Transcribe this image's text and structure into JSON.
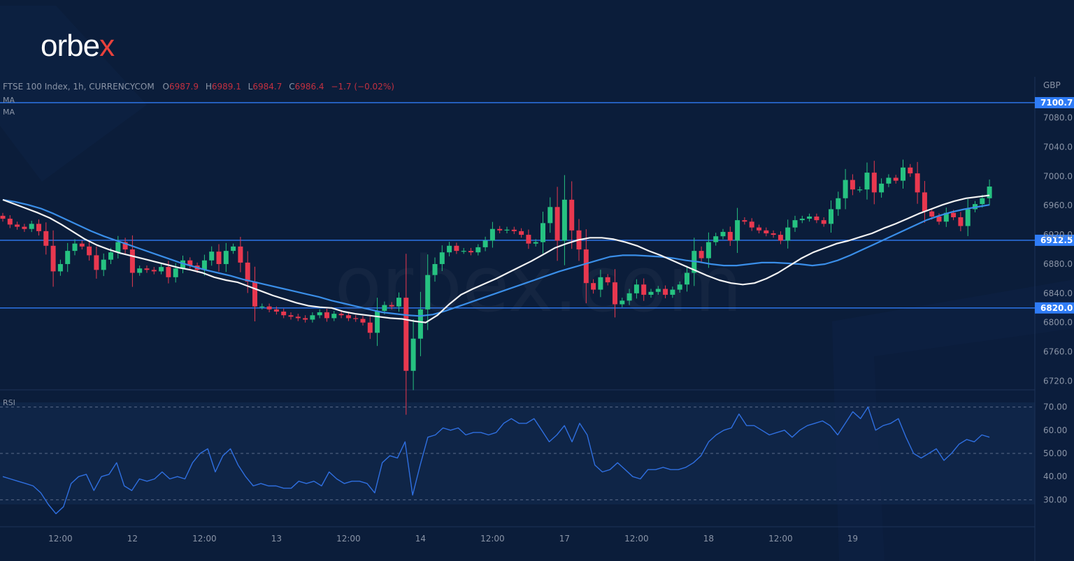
{
  "brand": {
    "name": "orbe",
    "accent": "x",
    "watermark": "orbex.com",
    "accent_color": "#e8413c"
  },
  "legend": {
    "symbol": "FTSE 100 Index, 1h, CURRENCYCOM",
    "o_label": "O",
    "o_value": "6987.9",
    "h_label": "H",
    "h_value": "6989.1",
    "l_label": "L",
    "l_value": "6984.7",
    "c_label": "C",
    "c_value": "6986.4",
    "change": "−1.7 (−0.02%)",
    "ma1": "MA",
    "ma2": "MA"
  },
  "colors": {
    "bg": "#0b1d3a",
    "up": "#26c281",
    "down": "#e8384f",
    "level": "#2f7cf6",
    "ma_fast": "#f2f2f2",
    "ma_slow": "#3a8ee8",
    "rsi": "#2f6fe0",
    "axis_text": "#8a94a6"
  },
  "chart_data": {
    "type": "candlestick",
    "currency": "GBP",
    "y_ticks": [
      7080,
      7040,
      7000,
      6960,
      6920,
      6880,
      6840,
      6800,
      6760,
      6720
    ],
    "ylim": [
      6708,
      7136
    ],
    "x_labels": [
      {
        "label": "12:00",
        "i": 8
      },
      {
        "label": "12",
        "i": 18
      },
      {
        "label": "12:00",
        "i": 28
      },
      {
        "label": "13",
        "i": 38
      },
      {
        "label": "12:00",
        "i": 48
      },
      {
        "label": "14",
        "i": 58
      },
      {
        "label": "12:00",
        "i": 68
      },
      {
        "label": "17",
        "i": 78
      },
      {
        "label": "12:00",
        "i": 88
      },
      {
        "label": "18",
        "i": 98
      },
      {
        "label": "12:00",
        "i": 108
      },
      {
        "label": "19",
        "i": 118
      }
    ],
    "levels": [
      {
        "value": 7100.7,
        "label": "7100.7"
      },
      {
        "value": 6912.5,
        "label": "6912.5"
      },
      {
        "value": 6820.0,
        "label": "6820.0"
      }
    ],
    "closes": [
      6942,
      6934,
      6931,
      6928,
      6935,
      6925,
      6905,
      6870,
      6880,
      6898,
      6908,
      6904,
      6892,
      6872,
      6886,
      6896,
      6910,
      6900,
      6868,
      6874,
      6872,
      6870,
      6876,
      6862,
      6874,
      6885,
      6878,
      6872,
      6885,
      6897,
      6880,
      6898,
      6904,
      6882,
      6856,
      6822,
      6822,
      6818,
      6815,
      6810,
      6808,
      6806,
      6804,
      6810,
      6814,
      6806,
      6812,
      6810,
      6806,
      6805,
      6800,
      6786,
      6816,
      6824,
      6822,
      6834,
      6734,
      6778,
      6818,
      6865,
      6880,
      6896,
      6905,
      6898,
      6898,
      6896,
      6903,
      6912,
      6928,
      6926,
      6927,
      6925,
      6920,
      6908,
      6910,
      6936,
      6958,
      6912,
      6968,
      6926,
      6900,
      6854,
      6845,
      6862,
      6855,
      6825,
      6830,
      6840,
      6852,
      6838,
      6842,
      6846,
      6838,
      6845,
      6852,
      6868,
      6898,
      6888,
      6910,
      6918,
      6924,
      6912,
      6940,
      6938,
      6930,
      6926,
      6922,
      6920,
      6912,
      6930,
      6940,
      6942,
      6945,
      6940,
      6935,
      6955,
      6970,
      6995,
      6982,
      6982,
      7005,
      6978,
      6990,
      6998,
      6994,
      7012,
      7004,
      6978,
      6952,
      6945,
      6938,
      6950,
      6944,
      6932,
      6955,
      6962,
      6970,
      6986
    ],
    "ma_fast": [
      6968,
      6962,
      6956,
      6950,
      6943,
      6934,
      6924,
      6914,
      6906,
      6900,
      6895,
      6891,
      6887,
      6883,
      6879,
      6875,
      6872,
      6868,
      6862,
      6858,
      6855,
      6849,
      6843,
      6837,
      6832,
      6827,
      6823,
      6821,
      6820,
      6815,
      6812,
      6810,
      6808,
      6806,
      6805,
      6802,
      6800,
      6810,
      6825,
      6838,
      6846,
      6853,
      6860,
      6868,
      6876,
      6884,
      6893,
      6902,
      6908,
      6913,
      6916,
      6916,
      6914,
      6910,
      6905,
      6898,
      6892,
      6885,
      6878,
      6871,
      6864,
      6858,
      6854,
      6852,
      6854,
      6860,
      6868,
      6878,
      6888,
      6896,
      6902,
      6908,
      6912,
      6917,
      6922,
      6929,
      6935,
      6942,
      6949,
      6955,
      6961,
      6966,
      6970,
      6972,
      6974
    ],
    "ma_slow": [
      6968,
      6965,
      6961,
      6956,
      6949,
      6941,
      6933,
      6925,
      6918,
      6912,
      6906,
      6900,
      6894,
      6888,
      6882,
      6877,
      6872,
      6868,
      6864,
      6859,
      6855,
      6851,
      6847,
      6843,
      6839,
      6835,
      6830,
      6826,
      6822,
      6818,
      6814,
      6812,
      6810,
      6809,
      6811,
      6816,
      6822,
      6828,
      6834,
      6840,
      6846,
      6852,
      6858,
      6864,
      6870,
      6875,
      6880,
      6885,
      6890,
      6892,
      6892,
      6891,
      6890,
      6888,
      6885,
      6883,
      6880,
      6878,
      6878,
      6880,
      6882,
      6882,
      6881,
      6880,
      6878,
      6880,
      6885,
      6892,
      6900,
      6908,
      6916,
      6924,
      6932,
      6940,
      6946,
      6951,
      6955,
      6958,
      6961
    ],
    "rsi_ticks": [
      70,
      60,
      50,
      40,
      30
    ],
    "rsi": [
      40,
      39,
      38,
      37,
      36,
      33,
      28,
      24,
      27,
      37,
      40,
      41,
      34,
      40,
      41,
      46,
      36,
      34,
      39,
      38,
      39,
      42,
      39,
      40,
      39,
      46,
      50,
      52,
      42,
      49,
      52,
      45,
      40,
      36,
      37,
      36,
      36,
      35,
      35,
      38,
      37,
      38,
      36,
      42,
      39,
      37,
      38,
      38,
      37,
      33,
      46,
      49,
      48,
      55,
      32,
      45,
      57,
      58,
      61,
      60,
      61,
      58,
      59,
      59,
      58,
      59,
      63,
      65,
      63,
      63,
      65,
      60,
      55,
      58,
      62,
      55,
      63,
      58,
      45,
      42,
      43,
      46,
      43,
      40,
      39,
      43,
      43,
      44,
      43,
      43,
      44,
      46,
      49,
      55,
      58,
      60,
      61,
      67,
      62,
      62,
      60,
      58,
      59,
      60,
      57,
      60,
      62,
      63,
      64,
      62,
      58,
      63,
      68,
      65,
      70,
      60,
      62,
      63,
      65,
      57,
      50,
      48,
      50,
      52,
      47,
      50,
      54,
      56,
      55,
      58,
      57
    ],
    "rsi_label": "RSI"
  }
}
